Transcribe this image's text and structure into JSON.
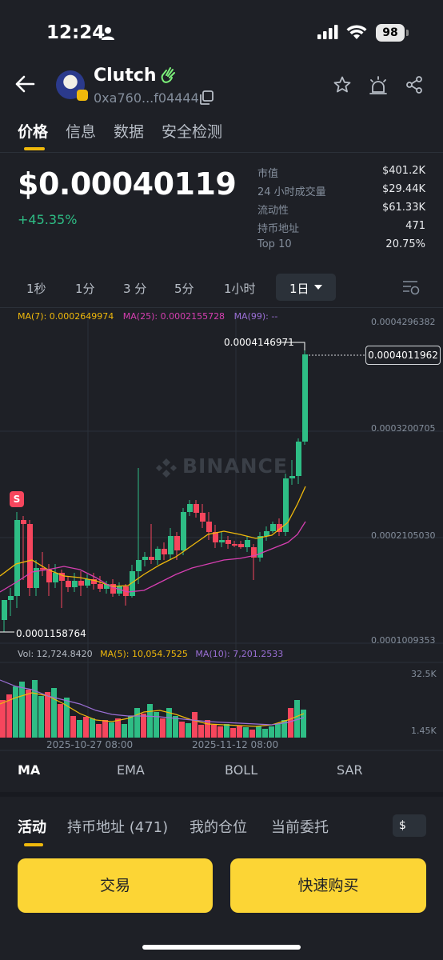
{
  "status_bar": {
    "time": "12:24",
    "battery": "98"
  },
  "header": {
    "token_name": "Clutch",
    "address": "0xa760...f04444"
  },
  "tabs": [
    {
      "label": "价格"
    },
    {
      "label": "信息"
    },
    {
      "label": "数据"
    },
    {
      "label": "安全检测"
    }
  ],
  "price": {
    "value": "$0.00040119",
    "change": "+45.35%"
  },
  "stats": [
    {
      "key": "市值",
      "value": "$401.2K"
    },
    {
      "key": "24 小时成交量",
      "value": "$29.44K"
    },
    {
      "key": "流动性",
      "value": "$61.33K"
    },
    {
      "key": "持币地址",
      "value": "471"
    },
    {
      "key": "Top 10",
      "value": "20.75%"
    }
  ],
  "intervals": [
    "1秒",
    "1分",
    "3 分",
    "5分",
    "1小时"
  ],
  "interval_selected": "1日",
  "chart": {
    "ma_legend": {
      "ma7": "MA(7): 0.0002649974",
      "ma25": "MA(25): 0.0002155728",
      "ma99": "MA(99): --"
    },
    "y_axis": [
      "0.0004296382",
      "0.0003200705",
      "0.0002105030",
      "0.0001009353"
    ],
    "current_price_label": "0.0004011962",
    "high_label": "0.0004146971",
    "low_label": "0.0001158764",
    "signal_marker": "S",
    "watermark": "BINANCE",
    "vol_legend": {
      "vol": "Vol: 12,724.8420",
      "ma5": "MA(5): 10,054.7525",
      "ma10": "MA(10): 7,201.2533"
    },
    "vol_axis": [
      "32.5K",
      "1.45K"
    ],
    "dates": [
      "2025-10-27 08:00",
      "2025-11-12 08:00"
    ],
    "colors": {
      "up": "#2ebd85",
      "down": "#f6465d",
      "ma7": "#f0b90b",
      "ma25": "#d63fb1",
      "ma99": "#9b6fd6"
    }
  },
  "indicators": [
    "MA",
    "EMA",
    "BOLL",
    "SAR"
  ],
  "bottom_tabs": [
    "活动",
    "持币地址 (471)",
    "我的仓位",
    "当前委托"
  ],
  "currency": "$",
  "buttons": {
    "trade": "交易",
    "quick_buy": "快速购买"
  }
}
